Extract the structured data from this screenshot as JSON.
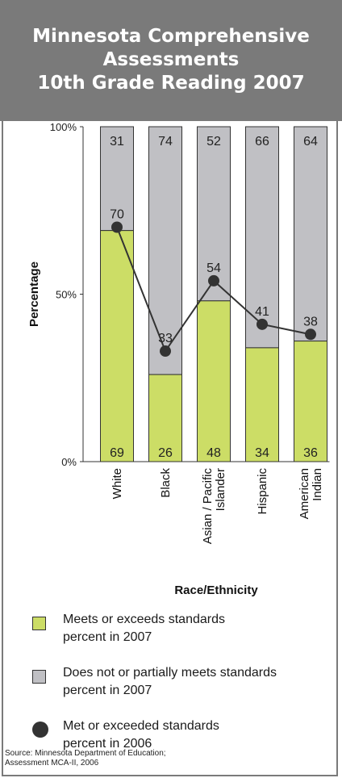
{
  "header": {
    "title_lines": [
      "Minnesota Comprehensive",
      "Assessments",
      "10th Grade Reading 2007"
    ]
  },
  "chart_data": {
    "type": "bar",
    "stacked": true,
    "categories": [
      [
        "White"
      ],
      [
        "Black"
      ],
      [
        "Asian / Pacific",
        "Islander"
      ],
      [
        "Hispanic"
      ],
      [
        "American",
        "Indian"
      ]
    ],
    "series": [
      {
        "name": "Meets or exceeds standards percent in 2007",
        "values": [
          69,
          26,
          48,
          34,
          36
        ],
        "color": "#ccdd66"
      },
      {
        "name": "Does not or partially meets standards percent in 2007",
        "values": [
          31,
          74,
          52,
          66,
          64
        ],
        "color": "#c0c0c4"
      }
    ],
    "line_series": {
      "name": "Met or exceeded standards percent in 2006",
      "values": [
        70,
        33,
        54,
        41,
        38
      ],
      "color": "#333333"
    },
    "xlabel": "Race/Ethnicity",
    "ylabel": "Percentage",
    "ylim": [
      0,
      100
    ],
    "yticks": [
      "0%",
      "50%",
      "100%"
    ],
    "grid": false
  },
  "legend": {
    "items": [
      {
        "line1": "Meets or exceeds standards",
        "line2": "percent in 2007",
        "color": "#ccdd66"
      },
      {
        "line1": "Does not or partially meets standards",
        "line2": "percent in 2007",
        "color": "#c0c0c4"
      },
      {
        "line1": "Met or exceeded standards",
        "line2": "percent in 2006",
        "color": "#333333"
      }
    ]
  },
  "source": {
    "line1": "Source: Minnesota Department of Education;",
    "line2": "Assessment MCA-II, 2006"
  }
}
